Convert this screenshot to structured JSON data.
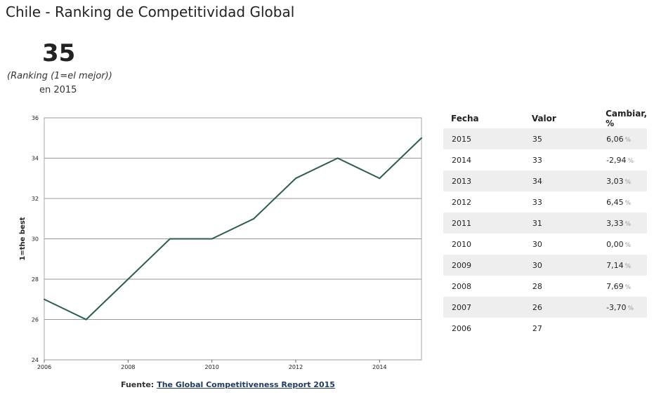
{
  "title": "Chile - Ranking de Competitividad Global",
  "headline": {
    "value": "35",
    "subtitle": "(Ranking (1=el mejor))",
    "period": "en 2015"
  },
  "source": {
    "label": "Fuente:",
    "link_text": "The Global Competitiveness Report 2015"
  },
  "chart_data": {
    "type": "line",
    "ylabel": "1=the best",
    "xlabel": "",
    "x": [
      2006,
      2007,
      2008,
      2009,
      2010,
      2011,
      2012,
      2013,
      2014,
      2015
    ],
    "series": [
      {
        "values": [
          27,
          26,
          28,
          30,
          30,
          31,
          33,
          34,
          33,
          35
        ]
      }
    ],
    "xlim": [
      2006,
      2015
    ],
    "ylim": [
      24,
      36
    ],
    "x_ticks": [
      "2006",
      "2008",
      "2010",
      "2012",
      "2014"
    ],
    "y_ticks": [
      "24",
      "26",
      "28",
      "30",
      "32",
      "34",
      "36"
    ],
    "grid": true,
    "line_color": "#2d5e4a"
  },
  "table": {
    "headers": [
      "Fecha",
      "Valor",
      "Cambiar, %"
    ],
    "pct_symbol": "%",
    "rows": [
      {
        "date": "2015",
        "value": "35",
        "change": "6,06"
      },
      {
        "date": "2014",
        "value": "33",
        "change": "-2,94"
      },
      {
        "date": "2013",
        "value": "34",
        "change": "3,03"
      },
      {
        "date": "2012",
        "value": "33",
        "change": "6,45"
      },
      {
        "date": "2011",
        "value": "31",
        "change": "3,33"
      },
      {
        "date": "2010",
        "value": "30",
        "change": "0,00"
      },
      {
        "date": "2009",
        "value": "30",
        "change": "7,14"
      },
      {
        "date": "2008",
        "value": "28",
        "change": "7,69"
      },
      {
        "date": "2007",
        "value": "26",
        "change": "-3,70"
      },
      {
        "date": "2006",
        "value": "27",
        "change": ""
      }
    ]
  }
}
